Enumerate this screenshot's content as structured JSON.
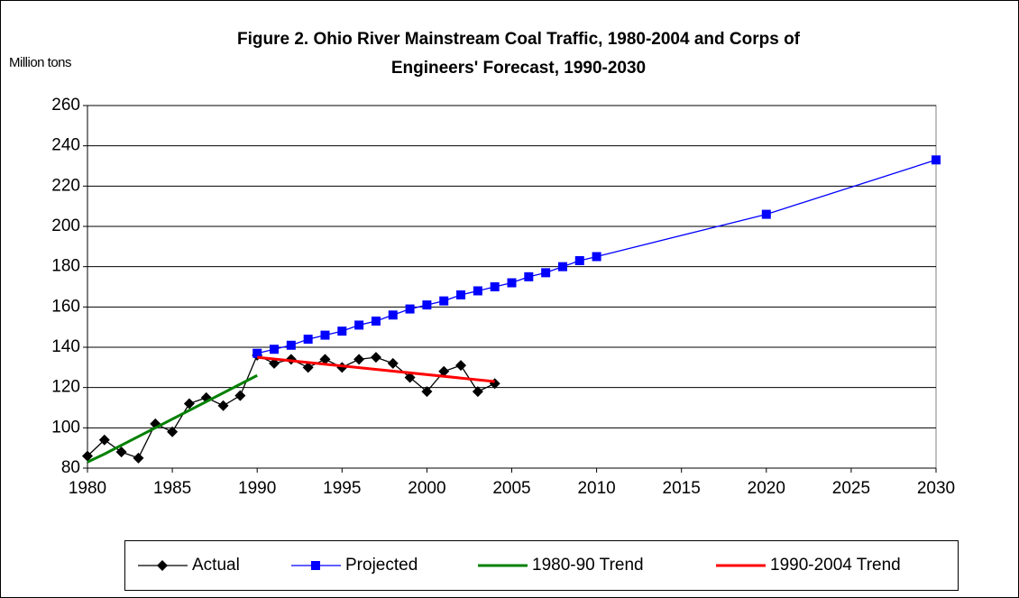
{
  "chart_data": {
    "type": "line",
    "title": [
      "Figure 2.  Ohio River Mainstream Coal Traffic, 1980-2004 and Corps of",
      "Engineers' Forecast, 1990-2030"
    ],
    "y_label": "Million tons",
    "xlim": [
      1980,
      2030
    ],
    "xticks": [
      1980,
      1985,
      1990,
      1995,
      2000,
      2005,
      2010,
      2015,
      2020,
      2025,
      2030
    ],
    "ylim": [
      80,
      260
    ],
    "yticks": [
      80,
      100,
      120,
      140,
      160,
      180,
      200,
      220,
      240,
      260
    ],
    "grid": true,
    "legend": "bottom",
    "series": [
      {
        "name": "Actual",
        "color": "#000000",
        "marker": "diamond",
        "x": [
          1980,
          1981,
          1982,
          1983,
          1984,
          1985,
          1986,
          1987,
          1988,
          1989,
          1990,
          1991,
          1992,
          1993,
          1994,
          1995,
          1996,
          1997,
          1998,
          1999,
          2000,
          2001,
          2002,
          2003,
          2004
        ],
        "values": [
          86,
          94,
          88,
          85,
          102,
          98,
          112,
          115,
          111,
          116,
          136,
          132,
          134,
          130,
          134,
          130,
          134,
          135,
          132,
          125,
          118,
          128,
          131,
          118,
          122
        ]
      },
      {
        "name": "Projected",
        "color": "#0000ff",
        "marker": "square",
        "x": [
          1990,
          1991,
          1992,
          1993,
          1994,
          1995,
          1996,
          1997,
          1998,
          1999,
          2000,
          2001,
          2002,
          2003,
          2004,
          2005,
          2006,
          2007,
          2008,
          2009,
          2010,
          2020,
          2030
        ],
        "values": [
          137,
          139,
          141,
          144,
          146,
          148,
          151,
          153,
          156,
          159,
          161,
          163,
          166,
          168,
          170,
          172,
          175,
          177,
          180,
          183,
          185,
          206,
          233
        ]
      },
      {
        "name": "1980-90 Trend",
        "color": "#008000",
        "marker": "none",
        "x": [
          1980,
          1981,
          1990
        ],
        "values": [
          83,
          87,
          126
        ]
      },
      {
        "name": "1990-2004 Trend",
        "color": "#ff0000",
        "marker": "none",
        "x": [
          1990,
          2004
        ],
        "values": [
          135,
          123
        ]
      }
    ]
  }
}
